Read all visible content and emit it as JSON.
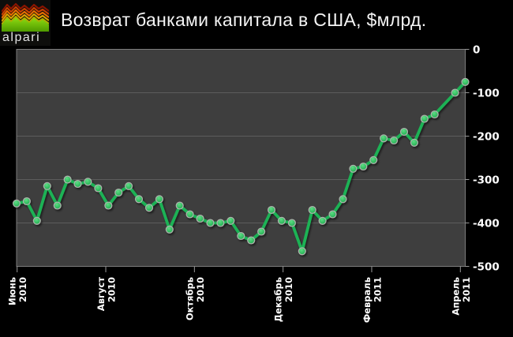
{
  "header": {
    "logo_text": "alpari",
    "title": "Возврат банками капитала в США, $млрд."
  },
  "colors": {
    "background": "#000000",
    "plot_bg": "#3e3e3e",
    "gridline": "#5c5c5c",
    "plot_border": "#7d7d7d",
    "tick": "#9a9a9a",
    "axis_label": "#ffffff",
    "title_text": "#f4f4f4",
    "series_line": "#1db254",
    "marker_fill_inner": "#5fdd85",
    "marker_fill_outer": "#14a546",
    "marker_stroke": "#aab2aa"
  },
  "logo": {
    "ridge_colors": [
      "#8b1500",
      "#c84000",
      "#e86d00",
      "#dba000",
      "#b3ad00"
    ],
    "mountain_gradient": [
      "#8fdc12",
      "#4f9a00"
    ]
  },
  "chart_data": {
    "type": "line",
    "title": "Возврат банками капитала в США, $млрд.",
    "xlabel": "",
    "ylabel": "",
    "ylim": [
      -500,
      0
    ],
    "y_ticks": [
      0,
      -100,
      -200,
      -300,
      -400,
      -500
    ],
    "y_axis_side": "right",
    "grid": "horizontal",
    "legend": "none",
    "x_unit": "week",
    "x_label_rotation": -90,
    "x_ticks": [
      {
        "month": "Июнь",
        "year": "2010"
      },
      {
        "month": "Август",
        "year": "2010"
      },
      {
        "month": "Октябрь",
        "year": "2010"
      },
      {
        "month": "Декабрь",
        "year": "2010"
      },
      {
        "month": "Февраль",
        "year": "2011"
      },
      {
        "month": "Апрель",
        "year": "2011"
      }
    ],
    "series": [
      {
        "color": "#1db254",
        "marker": "circle",
        "values": [
          -355,
          -350,
          -395,
          -315,
          -360,
          -300,
          -310,
          -305,
          -320,
          -360,
          -330,
          -315,
          -345,
          -365,
          -345,
          -415,
          -360,
          -380,
          -390,
          -400,
          -400,
          -395,
          -430,
          -440,
          -420,
          -370,
          -395,
          -400,
          -465,
          -370,
          -395,
          -380,
          -345,
          -275,
          -270,
          -255,
          -205,
          -210,
          -190,
          -215,
          -160,
          -150,
          null,
          -100,
          -75
        ]
      }
    ]
  }
}
